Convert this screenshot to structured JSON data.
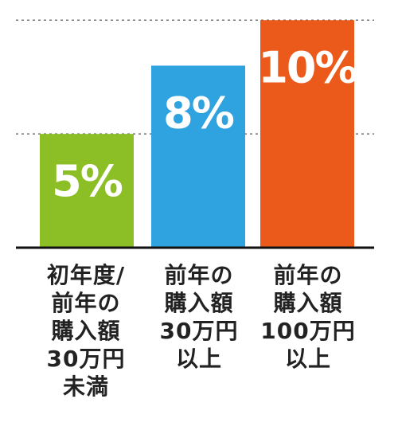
{
  "chart_data": {
    "type": "bar",
    "categories": [
      "初年度/\n前年の\n購入額\n30万円\n未満",
      "前年の\n購入額\n30万円\n以上",
      "前年の\n購入額\n100万円\n以上"
    ],
    "values": [
      5,
      8,
      10
    ],
    "value_labels": [
      "5%",
      "8%",
      "10%"
    ],
    "colors": [
      "#8cbf26",
      "#2fa3e0",
      "#eb5a1a"
    ],
    "ylim": [
      0,
      10.5
    ],
    "grid": true,
    "gridline_values": [
      5,
      10
    ],
    "title": "",
    "xlabel": "",
    "ylabel": ""
  }
}
